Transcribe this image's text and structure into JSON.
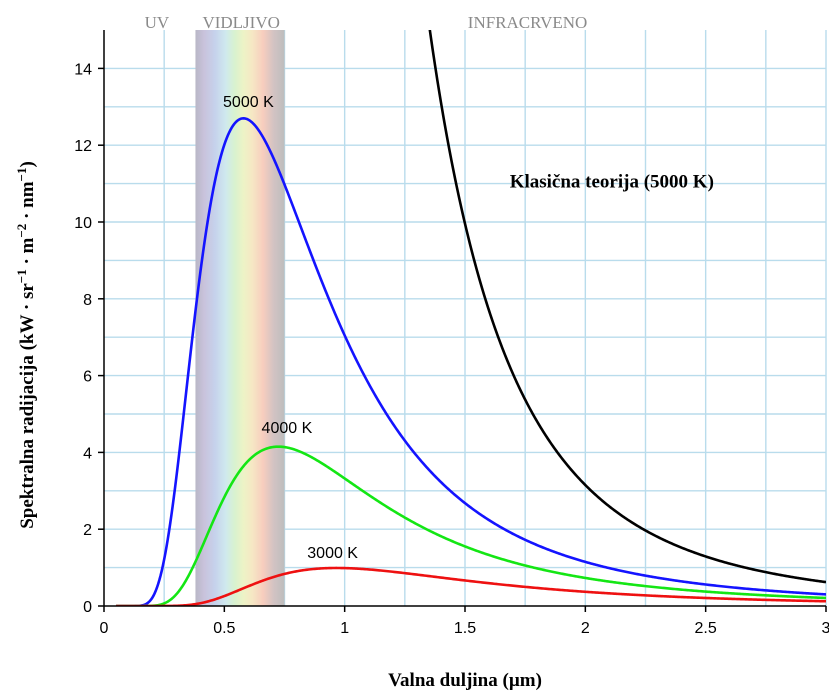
{
  "chart_data": {
    "type": "line",
    "xlabel": "Valna duljina (µm)",
    "ylabel_parts": [
      "Spektralna radijacija (kW · sr",
      "−1",
      " · m",
      "−2",
      " · nm",
      "−1",
      ")"
    ],
    "xlim": [
      0,
      3
    ],
    "ylim": [
      0,
      15
    ],
    "xticks": [
      "0",
      "0.5",
      "1",
      "1.5",
      "2",
      "2.5",
      "3"
    ],
    "xtick_values": [
      0,
      0.5,
      1,
      1.5,
      2,
      2.5,
      3
    ],
    "yticks": [
      "0",
      "2",
      "4",
      "6",
      "8",
      "10",
      "12",
      "14"
    ],
    "ytick_values": [
      0,
      2,
      4,
      6,
      8,
      10,
      12,
      14
    ],
    "grid": true,
    "regions": [
      {
        "label": "UV",
        "x_center": 0.22
      },
      {
        "label": "VIDLJIVO",
        "x_center": 0.57,
        "band": [
          0.38,
          0.75
        ]
      },
      {
        "label": "INFRACRVENO",
        "x_center": 1.76
      }
    ],
    "series": [
      {
        "name": "5000 K",
        "color": "#1414ff",
        "temperature_k": 5000,
        "peak": [
          0.58,
          12.7
        ]
      },
      {
        "name": "4000 K",
        "color": "#14e614",
        "temperature_k": 4000,
        "peak": [
          0.72,
          4.15
        ]
      },
      {
        "name": "3000 K",
        "color": "#ee1111",
        "temperature_k": 3000,
        "peak": [
          0.97,
          0.99
        ]
      },
      {
        "name": "Klasična teorija (5000 K)",
        "color": "#000000",
        "temperature_k": 5000,
        "model": "classical"
      }
    ],
    "label_positions": [
      {
        "text": "5000 K",
        "x": 0.6,
        "y": 13.0
      },
      {
        "text": "4000 K",
        "x": 0.76,
        "y": 4.5
      },
      {
        "text": "3000 K",
        "x": 0.95,
        "y": 1.25
      }
    ],
    "annotation": {
      "text": "Klasična teorija (5000 K)",
      "x": 2.11,
      "y": 10.9
    }
  }
}
